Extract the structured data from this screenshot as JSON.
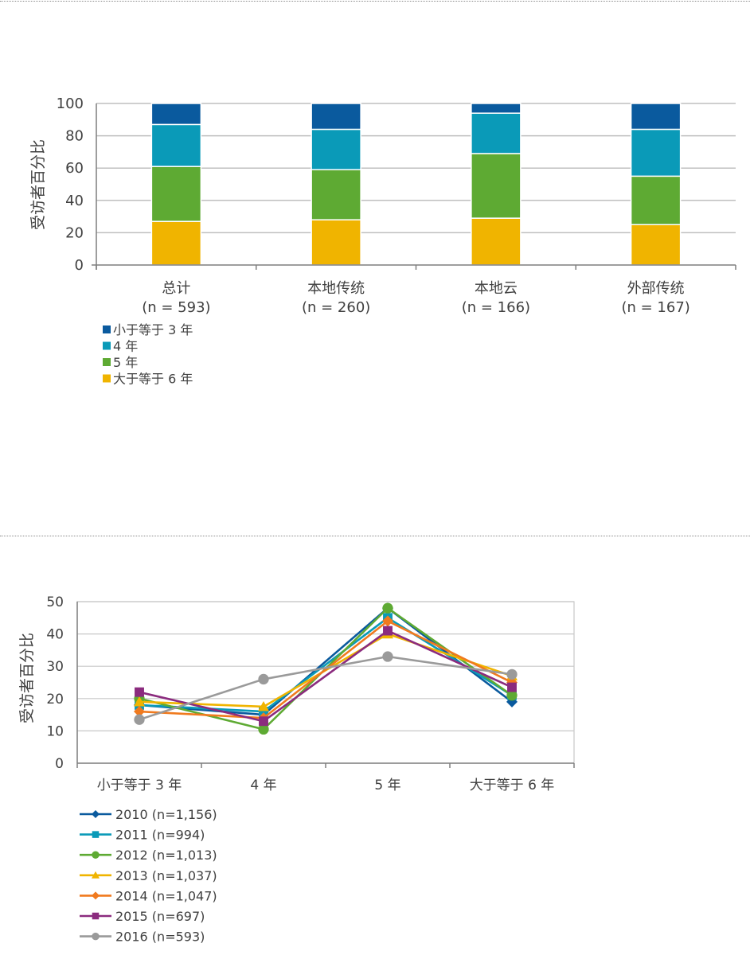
{
  "chart_data": [
    {
      "type": "bar",
      "stacked": true,
      "ylabel": "受访者百分比",
      "ylim": [
        0,
        100
      ],
      "yticks": [
        0,
        20,
        40,
        60,
        80,
        100
      ],
      "grid": true,
      "legend_position": "bottom-left",
      "categories": [
        {
          "name": "总计",
          "n": "(n = 593)"
        },
        {
          "name": "本地传统",
          "n": "(n = 260)"
        },
        {
          "name": "本地云",
          "n": "(n = 166)"
        },
        {
          "name": "外部传统",
          "n": "(n = 167)"
        }
      ],
      "series": [
        {
          "name": "大于等于 6 年",
          "color": "#F0B400",
          "values": [
            27,
            28,
            29,
            25
          ]
        },
        {
          "name": "5 年",
          "color": "#5EAA33",
          "values": [
            34,
            31,
            40,
            30
          ]
        },
        {
          "name": "4 年",
          "color": "#0A9AB8",
          "values": [
            26,
            25,
            25,
            29
          ]
        },
        {
          "name": "小于等于 3 年",
          "color": "#0A5A9E",
          "values": [
            13,
            16,
            6,
            16
          ]
        }
      ],
      "legend_order": [
        "小于等于 3 年",
        "4 年",
        "5 年",
        "大于等于 6 年"
      ]
    },
    {
      "type": "line",
      "ylabel": "受访者百分比",
      "ylim": [
        0,
        50
      ],
      "yticks": [
        0,
        10,
        20,
        30,
        40,
        50
      ],
      "grid": true,
      "legend_position": "bottom-left",
      "categories": [
        "小于等于 3 年",
        "4 年",
        "5 年",
        "大于等于 6 年"
      ],
      "series": [
        {
          "name": "2010 (n=1,156)",
          "color": "#0A5A9E",
          "marker": "diamond",
          "values": [
            18,
            15,
            48,
            19
          ]
        },
        {
          "name": "2011 (n=994)",
          "color": "#0A9AB8",
          "marker": "square",
          "values": [
            18,
            16,
            45,
            21
          ]
        },
        {
          "name": "2012 (n=1,013)",
          "color": "#5EAA33",
          "marker": "circle",
          "values": [
            20,
            10.5,
            48,
            21
          ]
        },
        {
          "name": "2013 (n=1,037)",
          "color": "#F0B400",
          "marker": "triangle",
          "values": [
            19,
            17.5,
            40,
            27
          ]
        },
        {
          "name": "2014 (n=1,047)",
          "color": "#F07A1E",
          "marker": "diamond",
          "values": [
            16,
            14,
            44,
            25
          ]
        },
        {
          "name": "2015 (n=697)",
          "color": "#8B2B7E",
          "marker": "square",
          "values": [
            22,
            13,
            41,
            23.5
          ]
        },
        {
          "name": "2016 (n=593)",
          "color": "#9A9A9A",
          "marker": "circle",
          "values": [
            13.5,
            26,
            33,
            27.5
          ]
        }
      ]
    }
  ]
}
